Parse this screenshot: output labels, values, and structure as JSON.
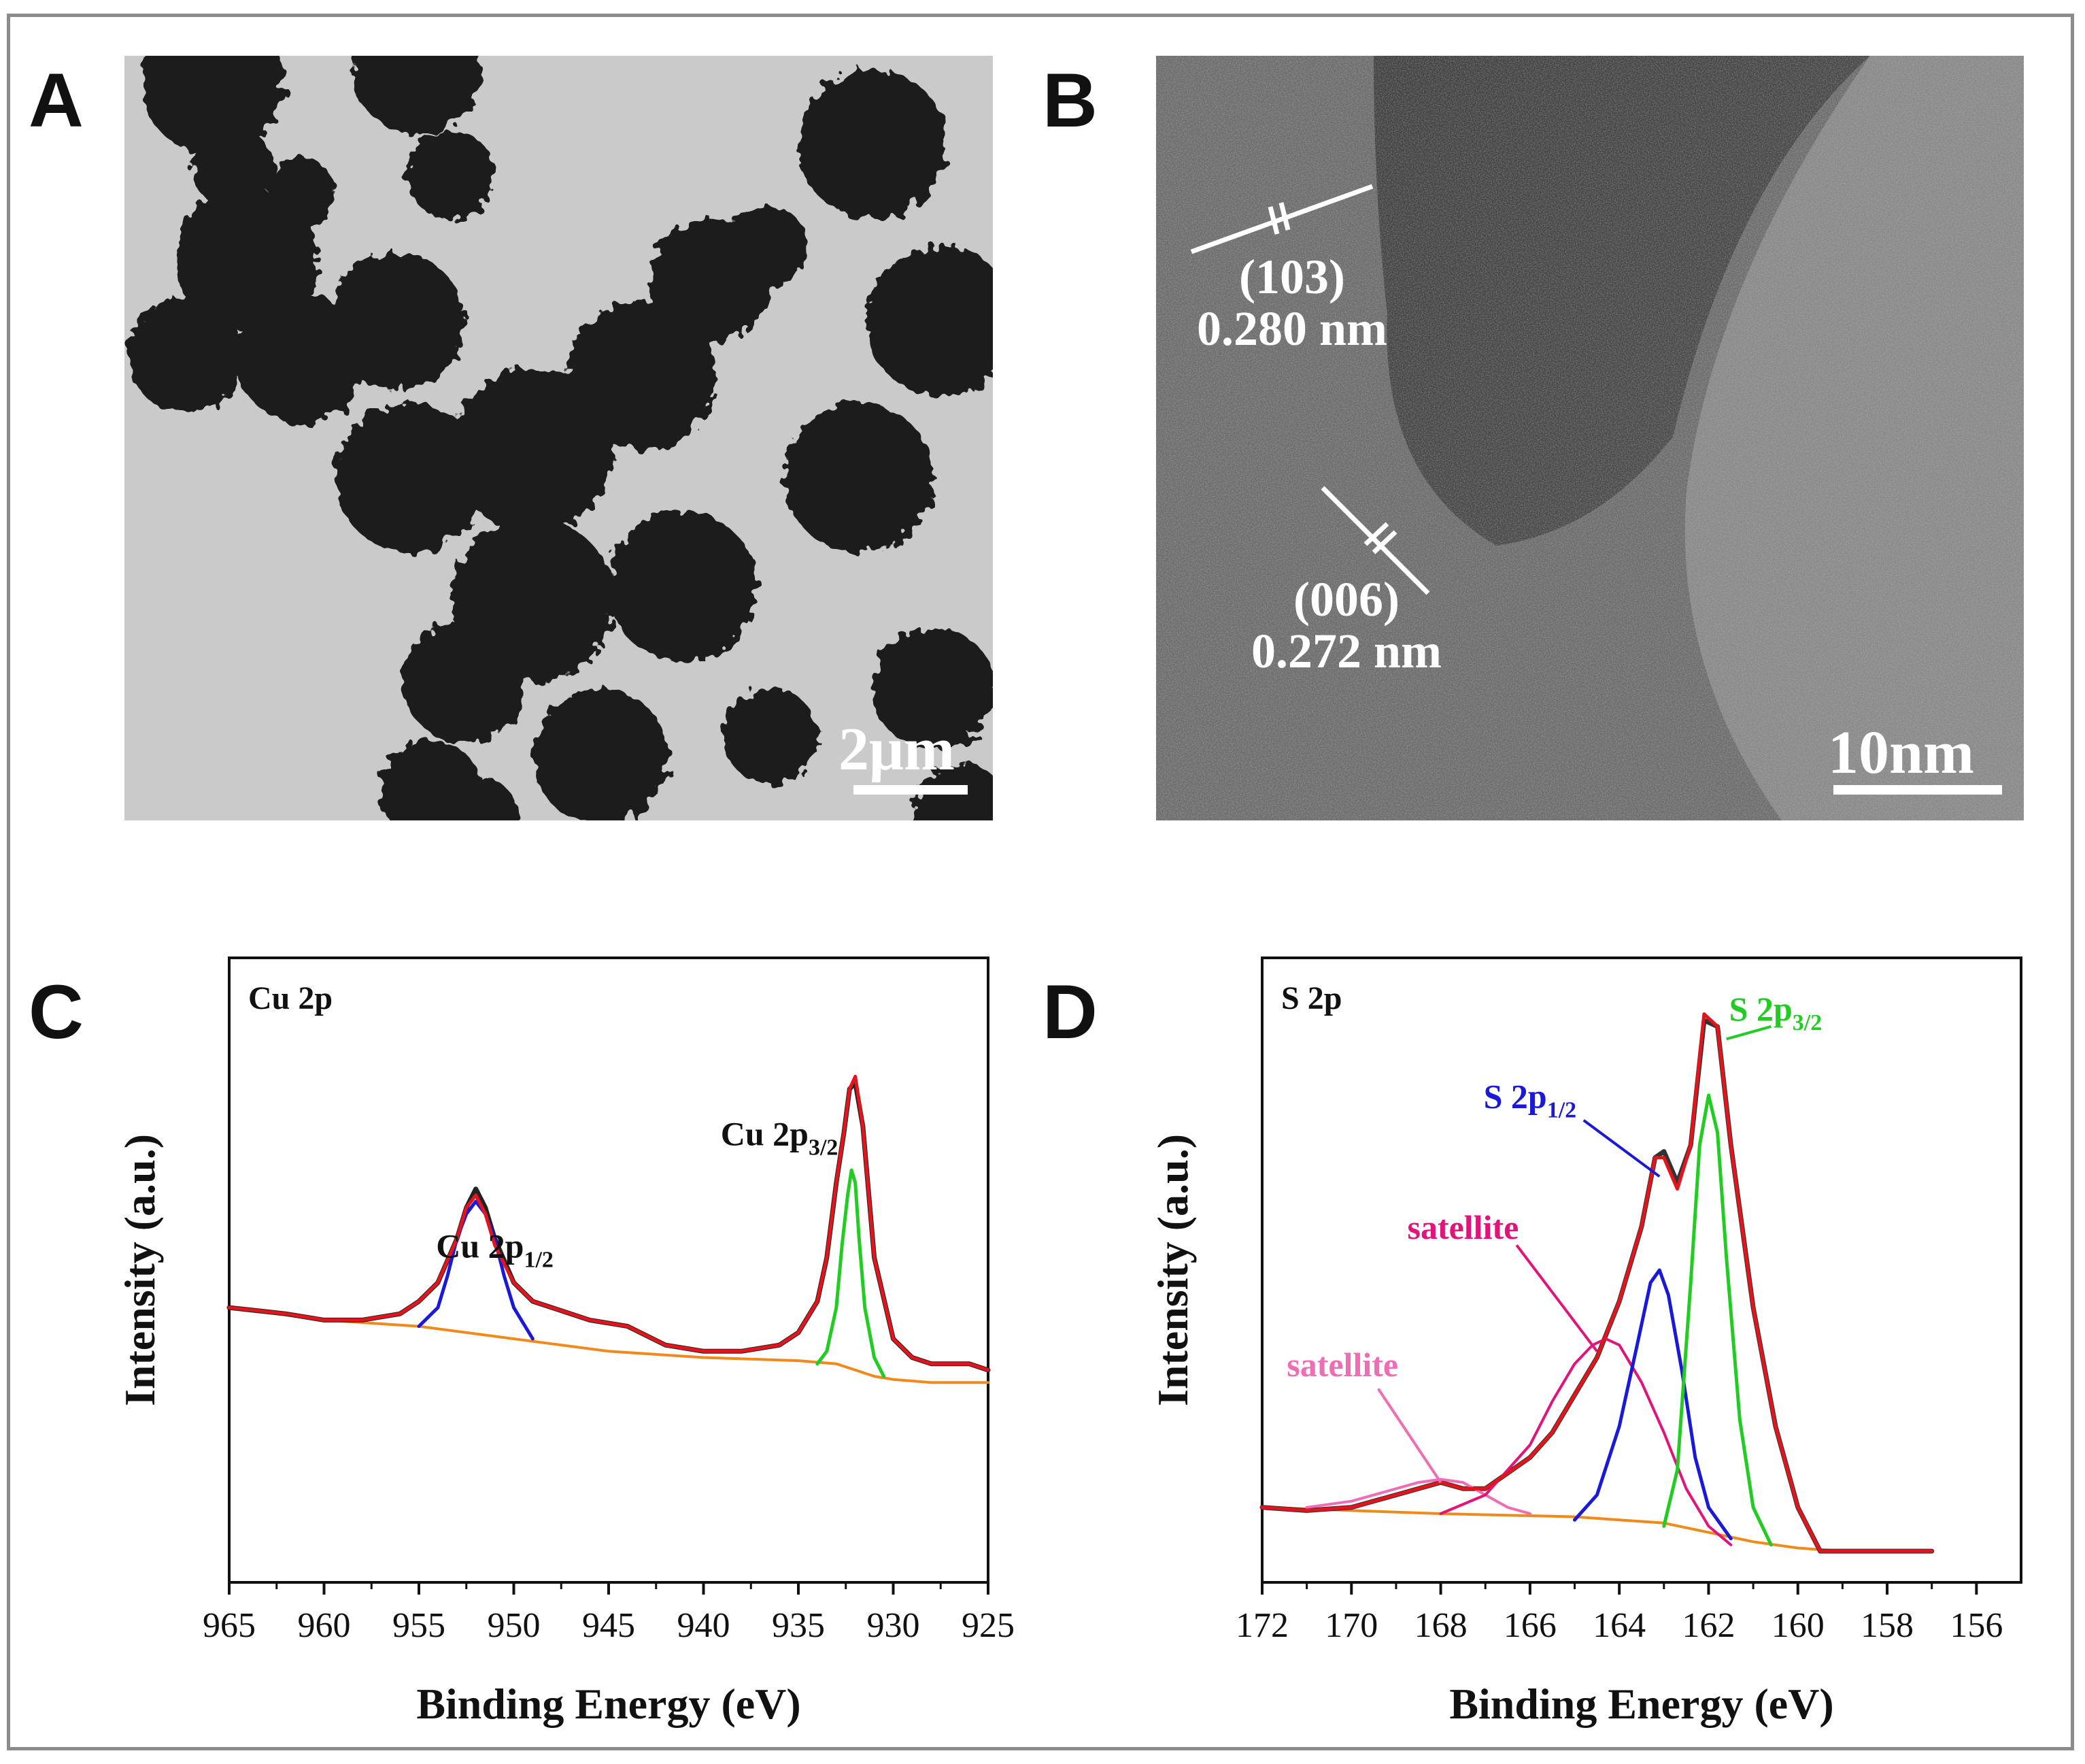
{
  "panels": {
    "A": {
      "letter": "A",
      "scale_label": "2μm"
    },
    "B": {
      "letter": "B",
      "annotations": [
        {
          "plane": "(103)",
          "spacing": "0.280 nm"
        },
        {
          "plane": "(006)",
          "spacing": "0.272 nm"
        }
      ],
      "scale_label": "10nm"
    },
    "C": {
      "letter": "C"
    },
    "D": {
      "letter": "D"
    }
  },
  "chart_data": [
    {
      "id": "C",
      "type": "line",
      "title": "Cu 2p",
      "xlabel": "Binding Energy (eV)",
      "ylabel": "Intensity (a.u.)",
      "xlim": [
        965,
        925
      ],
      "ylim": [
        0,
        100
      ],
      "x_reversed": true,
      "xticks": [
        965,
        960,
        955,
        950,
        945,
        940,
        935,
        930,
        925
      ],
      "show_y_ticks": false,
      "annotations": [
        {
          "base": "Cu 2p",
          "sub": "1/2",
          "x": 951,
          "y": 52
        },
        {
          "base": "Cu 2p",
          "sub": "3/2",
          "x": 936,
          "y": 70
        }
      ],
      "colors": {
        "raw": "#222222",
        "envelope": "#e3141c",
        "background": "#f08a1c",
        "p12": "#1a1ad6",
        "p32": "#22cc22"
      },
      "series": [
        {
          "role": "raw",
          "x": [
            965,
            962,
            960,
            958,
            956,
            955,
            954,
            953,
            952.5,
            952,
            951.5,
            951,
            950,
            949,
            948,
            946,
            944,
            942,
            940,
            938,
            936,
            935,
            934,
            933.5,
            933,
            932.6,
            932.3,
            932,
            931.6,
            931,
            930,
            929,
            928,
            926,
            925
          ],
          "y": [
            44,
            43,
            42,
            42,
            43,
            45,
            48,
            55,
            60,
            63,
            60,
            55,
            48,
            45,
            44,
            42,
            41,
            38,
            37,
            37,
            38,
            40,
            45,
            52,
            64,
            72,
            79,
            80,
            73,
            52,
            39,
            36,
            35,
            35,
            34
          ]
        },
        {
          "role": "envelope",
          "x": [
            965,
            962,
            960,
            958,
            956,
            955,
            954,
            953,
            952.5,
            952,
            951.5,
            951,
            950,
            949,
            948,
            946,
            944,
            942,
            940,
            938,
            936,
            935,
            934,
            933.5,
            933,
            932.6,
            932.3,
            932,
            931.6,
            931,
            930,
            929,
            928,
            926,
            925
          ],
          "y": [
            44,
            43,
            42,
            42,
            43,
            45,
            48,
            55,
            60,
            62,
            59,
            54,
            48,
            45,
            44,
            42,
            41,
            38,
            37,
            37,
            38,
            40,
            45,
            52,
            64,
            72,
            79,
            81,
            73,
            52,
            39,
            36,
            35,
            35,
            34
          ]
        },
        {
          "role": "background",
          "x": [
            965,
            960,
            955,
            950,
            945,
            940,
            935,
            933,
            932,
            931,
            930,
            928,
            925
          ],
          "y": [
            44,
            42,
            41,
            39,
            37,
            36,
            35.5,
            35,
            34,
            33,
            32.5,
            32,
            32
          ]
        },
        {
          "role": "p12",
          "x": [
            955,
            954,
            953.5,
            953,
            952.5,
            952,
            951.5,
            951,
            950.5,
            950,
            949
          ],
          "y": [
            41,
            44,
            49,
            55,
            59,
            61,
            59,
            55,
            49,
            44,
            39
          ]
        },
        {
          "role": "p32",
          "x": [
            934,
            933.5,
            933,
            932.7,
            932.4,
            932.2,
            932,
            931.8,
            931.5,
            931,
            930.5
          ],
          "y": [
            35,
            37,
            44,
            54,
            62,
            66,
            64,
            55,
            44,
            36,
            33
          ]
        }
      ]
    },
    {
      "id": "D",
      "type": "line",
      "title": "S 2p",
      "xlabel": "Binding Energy (eV)",
      "ylabel": "Intensity (a.u.)",
      "xlim": [
        172,
        155
      ],
      "ylim": [
        0,
        100
      ],
      "x_reversed": true,
      "xticks": [
        172,
        170,
        168,
        166,
        164,
        162,
        160,
        158,
        156
      ],
      "show_y_ticks": false,
      "annotations": [
        {
          "base": "S 2p",
          "sub": "3/2",
          "x": 160.5,
          "y": 90,
          "color": "#22cc22"
        },
        {
          "base": "S 2p",
          "sub": "1/2",
          "x": 166,
          "y": 76,
          "color": "#1a1ad6"
        },
        {
          "base": "satellite",
          "sub": "",
          "x": 167.5,
          "y": 55,
          "color": "#e0147a"
        },
        {
          "base": "satellite",
          "sub": "",
          "x": 170.2,
          "y": 33,
          "color": "#ee6db5"
        }
      ],
      "colors": {
        "raw": "#333333",
        "envelope": "#e3141c",
        "background": "#f08a1c",
        "p12": "#1a1ad6",
        "p32": "#22cc22",
        "sat1": "#e0147a",
        "sat2": "#ee6db5"
      },
      "series": [
        {
          "role": "raw",
          "x": [
            172,
            171,
            170,
            169,
            168.5,
            168,
            167.5,
            167,
            166,
            165.5,
            165,
            164.5,
            164,
            163.5,
            163.2,
            163,
            162.7,
            162.4,
            162.1,
            161.8,
            161.5,
            161,
            160.5,
            160,
            159.5,
            159,
            158,
            157
          ],
          "y": [
            12,
            11.5,
            12,
            14,
            15,
            16,
            15,
            15,
            20,
            24,
            30,
            36,
            45,
            57,
            68,
            69,
            64,
            70,
            90,
            89,
            70,
            44,
            25,
            12,
            5,
            5,
            5,
            5
          ]
        },
        {
          "role": "envelope",
          "x": [
            172,
            171,
            170,
            169,
            168.5,
            168,
            167.5,
            167,
            166,
            165.5,
            165,
            164.5,
            164,
            163.5,
            163.2,
            163,
            162.7,
            162.4,
            162.1,
            161.8,
            161.5,
            161,
            160.5,
            160,
            159.5,
            159,
            158,
            157
          ],
          "y": [
            12,
            11.5,
            12,
            14,
            15,
            16,
            15,
            15,
            20,
            24,
            30,
            36,
            45,
            57,
            68,
            68,
            63,
            70,
            91,
            89,
            70,
            44,
            25,
            12,
            5,
            5,
            5,
            5
          ]
        },
        {
          "role": "background",
          "x": [
            172,
            168,
            165,
            163,
            162,
            161,
            160,
            159,
            157
          ],
          "y": [
            12,
            11,
            10.5,
            9.5,
            8,
            6.5,
            5.5,
            5,
            5
          ]
        },
        {
          "role": "p12",
          "x": [
            165,
            164.5,
            164,
            163.6,
            163.3,
            163.1,
            162.9,
            162.6,
            162.3,
            162,
            161.5
          ],
          "y": [
            10,
            14,
            25,
            38,
            48,
            50,
            46,
            34,
            20,
            12,
            7
          ]
        },
        {
          "role": "p32",
          "x": [
            163,
            162.7,
            162.4,
            162.2,
            162,
            161.8,
            161.6,
            161.3,
            161,
            160.6
          ],
          "y": [
            9,
            18,
            48,
            70,
            78,
            72,
            52,
            26,
            12,
            6
          ]
        },
        {
          "role": "sat1",
          "x": [
            168,
            167,
            166,
            165.5,
            165,
            164.6,
            164.3,
            164,
            163.5,
            163,
            162.5,
            162,
            161.5
          ],
          "y": [
            11,
            14,
            22,
            29,
            35,
            38,
            39,
            38,
            32,
            24,
            15,
            9,
            6
          ]
        },
        {
          "role": "sat2",
          "x": [
            171,
            170,
            169,
            168.5,
            168,
            167.5,
            167,
            166.5,
            166
          ],
          "y": [
            12,
            13,
            15,
            16,
            16.5,
            16,
            14,
            12,
            11
          ]
        }
      ]
    }
  ]
}
